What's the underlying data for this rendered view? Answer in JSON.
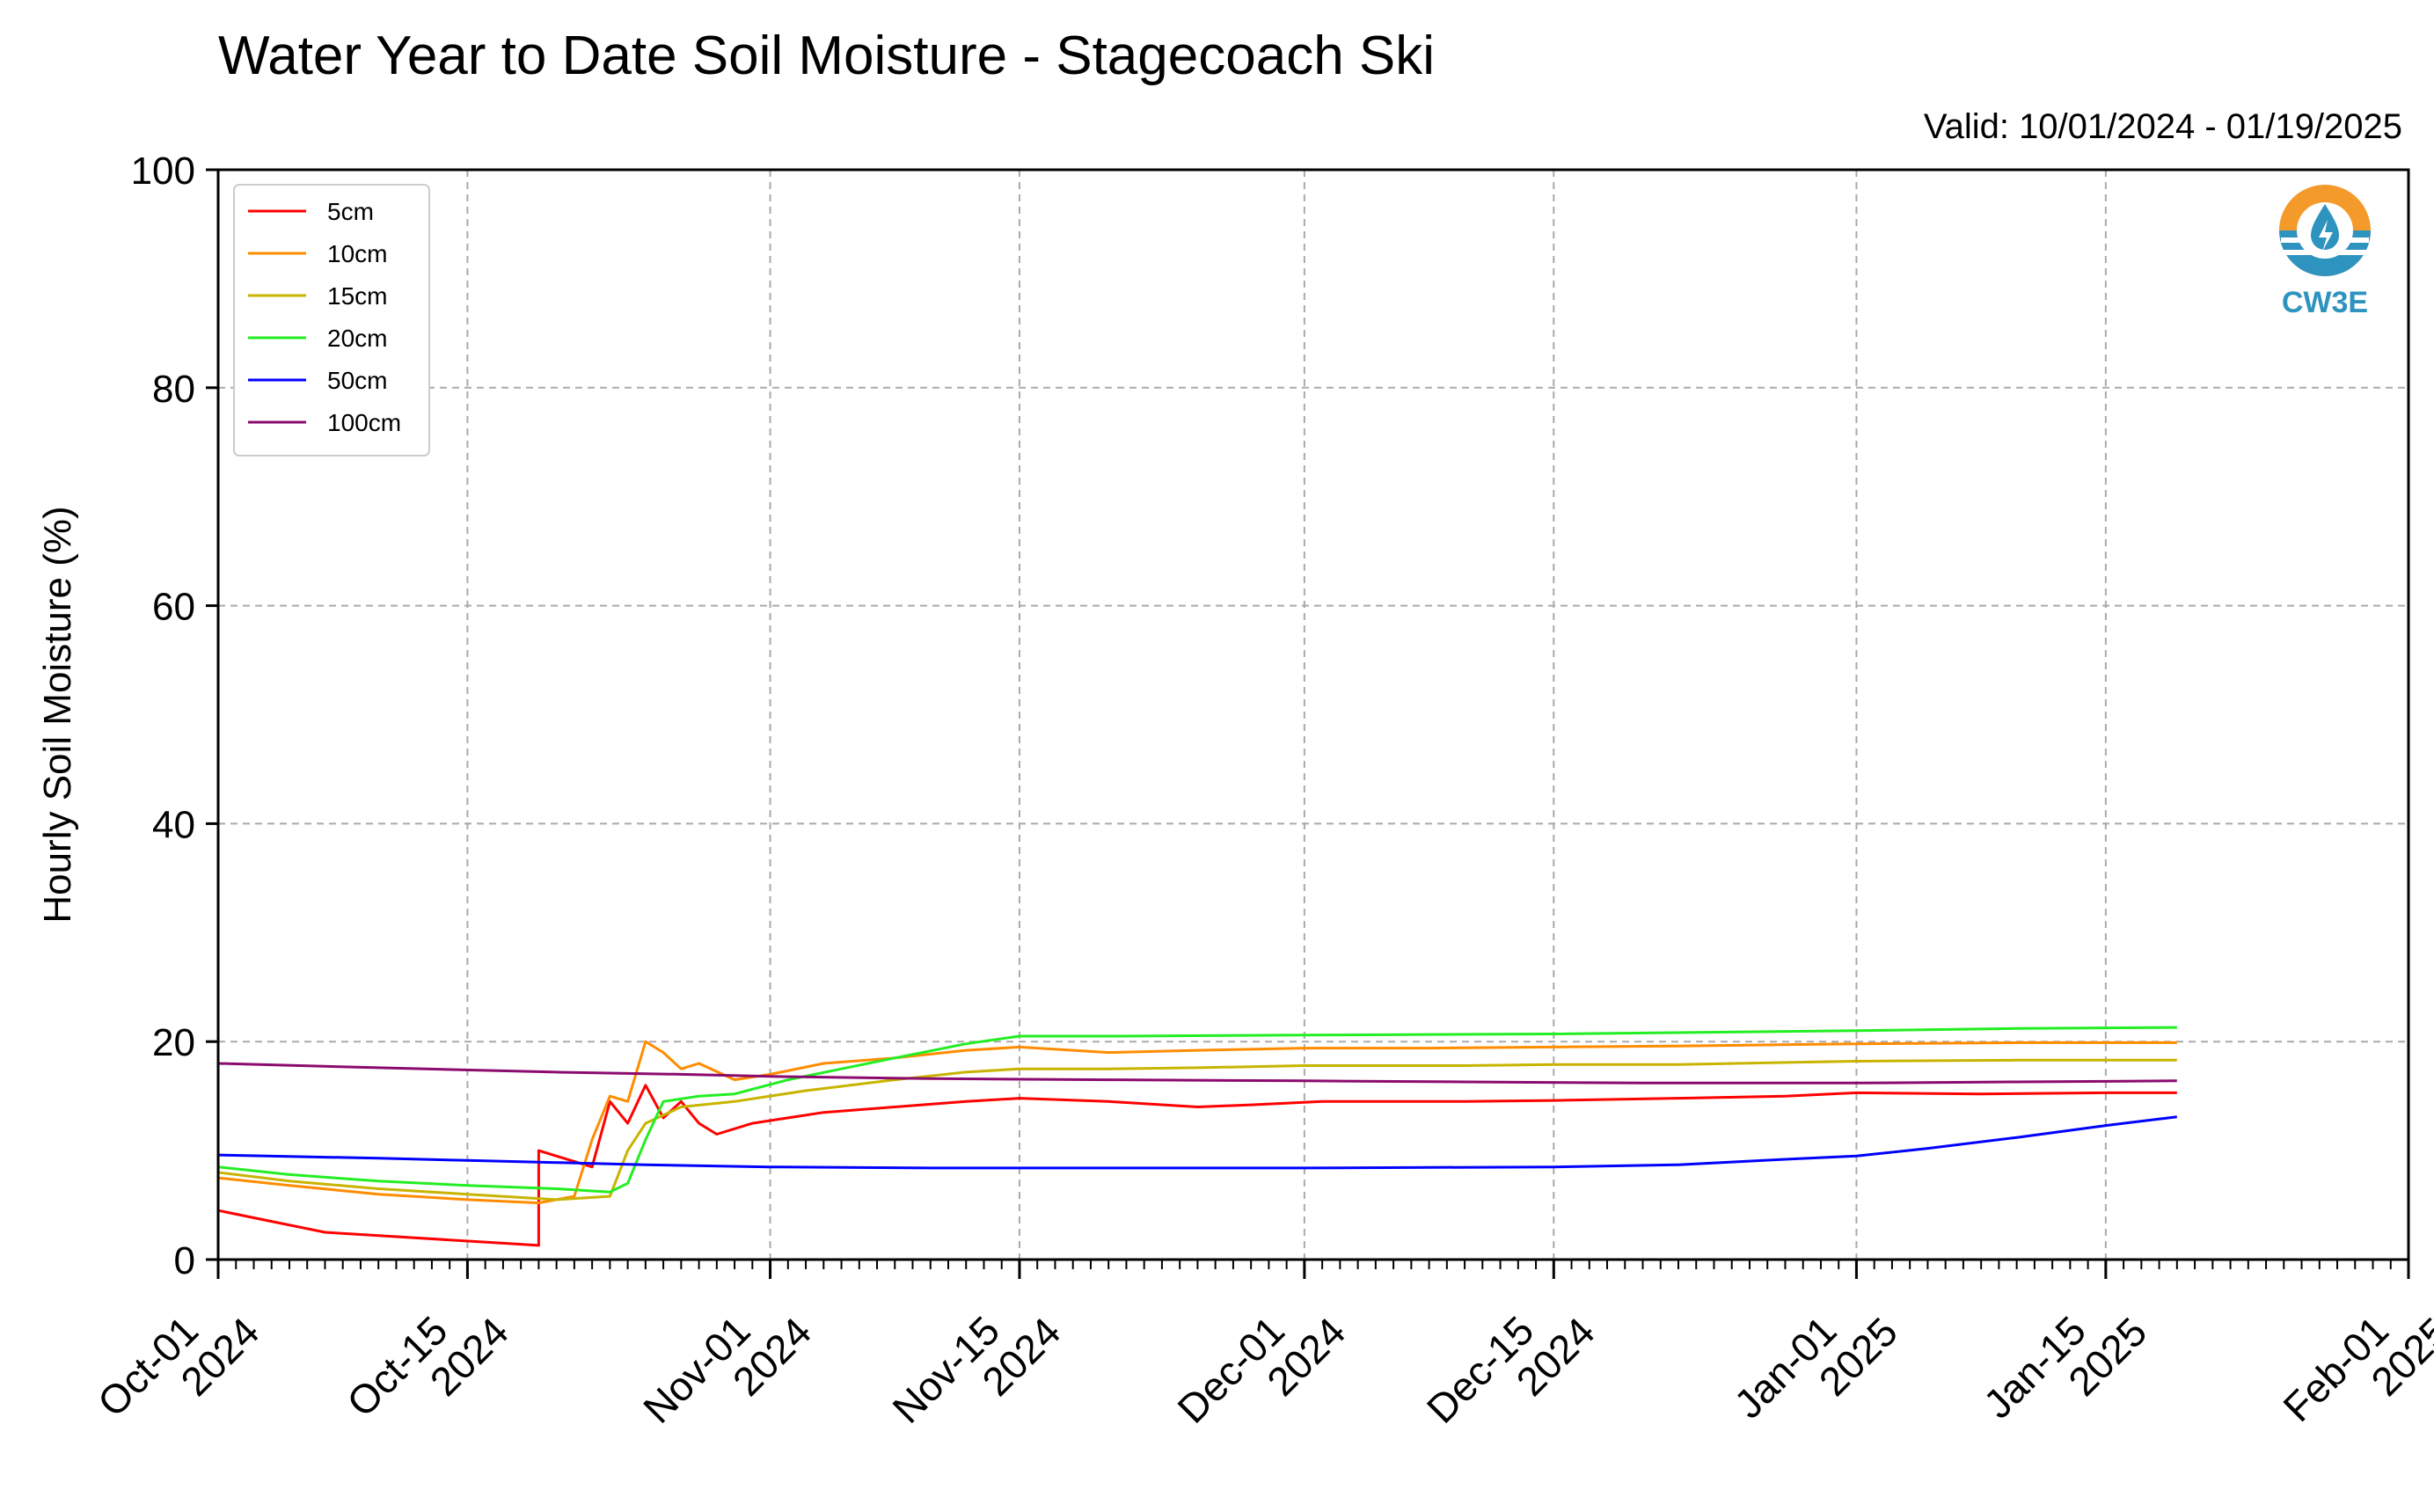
{
  "title": "Water Year to Date Soil Moisture - Stagecoach Ski",
  "valid_label": "Valid: 10/01/2024 - 01/19/2025",
  "logo": {
    "text": "CW3E",
    "icon": "cw3e-water-drop-logo",
    "color": "#2e93bf",
    "accent": "#f39a2a"
  },
  "chart_data": {
    "type": "line",
    "title": "Water Year to Date Soil Moisture - Stagecoach Ski",
    "xlabel": "",
    "ylabel": "Hourly Soil Moisture (%)",
    "xlim": [
      "2024-10-01",
      "2025-02-01"
    ],
    "ylim": [
      0,
      100
    ],
    "yticks": [
      0,
      20,
      40,
      60,
      80,
      100
    ],
    "xticks": [
      {
        "date": "2024-10-01",
        "label": [
          "Oct-01",
          "2024"
        ]
      },
      {
        "date": "2024-10-15",
        "label": [
          "Oct-15",
          "2024"
        ]
      },
      {
        "date": "2024-11-01",
        "label": [
          "Nov-01",
          "2024"
        ]
      },
      {
        "date": "2024-11-15",
        "label": [
          "Nov-15",
          "2024"
        ]
      },
      {
        "date": "2024-12-01",
        "label": [
          "Dec-01",
          "2024"
        ]
      },
      {
        "date": "2024-12-15",
        "label": [
          "Dec-15",
          "2024"
        ]
      },
      {
        "date": "2025-01-01",
        "label": [
          "Jan-01",
          "2025"
        ]
      },
      {
        "date": "2025-01-15",
        "label": [
          "Jan-15",
          "2025"
        ]
      },
      {
        "date": "2025-02-01",
        "label": [
          "Feb-01",
          "2025"
        ]
      }
    ],
    "grid": true,
    "legend_position": "top-left",
    "series": [
      {
        "name": "5cm",
        "color": "#ff0000",
        "points": [
          [
            "2024-10-01",
            4.5
          ],
          [
            "2024-10-04",
            3.5
          ],
          [
            "2024-10-07",
            2.5
          ],
          [
            "2024-10-10",
            2.2
          ],
          [
            "2024-10-14",
            1.8
          ],
          [
            "2024-10-17",
            1.5
          ],
          [
            "2024-10-19",
            1.3
          ],
          [
            "2024-10-19",
            10.0
          ],
          [
            "2024-10-20",
            9.5
          ],
          [
            "2024-10-22",
            8.5
          ],
          [
            "2024-10-23",
            14.5
          ],
          [
            "2024-10-24",
            12.5
          ],
          [
            "2024-10-25",
            16.0
          ],
          [
            "2024-10-26",
            13.0
          ],
          [
            "2024-10-27",
            14.5
          ],
          [
            "2024-10-28",
            12.5
          ],
          [
            "2024-10-29",
            11.5
          ],
          [
            "2024-10-31",
            12.5
          ],
          [
            "2024-11-04",
            13.5
          ],
          [
            "2024-11-08",
            14.0
          ],
          [
            "2024-11-12",
            14.5
          ],
          [
            "2024-11-15",
            14.8
          ],
          [
            "2024-11-20",
            14.5
          ],
          [
            "2024-11-25",
            14.0
          ],
          [
            "2024-11-28",
            14.2
          ],
          [
            "2024-12-02",
            14.5
          ],
          [
            "2024-12-10",
            14.5
          ],
          [
            "2024-12-15",
            14.6
          ],
          [
            "2024-12-22",
            14.8
          ],
          [
            "2024-12-28",
            15.0
          ],
          [
            "2025-01-01",
            15.3
          ],
          [
            "2025-01-08",
            15.2
          ],
          [
            "2025-01-15",
            15.3
          ],
          [
            "2025-01-19",
            15.3
          ]
        ]
      },
      {
        "name": "10cm",
        "color": "#ff8c00",
        "points": [
          [
            "2024-10-01",
            7.5
          ],
          [
            "2024-10-05",
            6.8
          ],
          [
            "2024-10-10",
            6.0
          ],
          [
            "2024-10-15",
            5.5
          ],
          [
            "2024-10-19",
            5.2
          ],
          [
            "2024-10-21",
            5.8
          ],
          [
            "2024-10-22",
            11.0
          ],
          [
            "2024-10-23",
            15.0
          ],
          [
            "2024-10-24",
            14.5
          ],
          [
            "2024-10-25",
            20.0
          ],
          [
            "2024-10-26",
            19.0
          ],
          [
            "2024-10-27",
            17.5
          ],
          [
            "2024-10-28",
            18.0
          ],
          [
            "2024-10-30",
            16.5
          ],
          [
            "2024-11-01",
            17.0
          ],
          [
            "2024-11-04",
            18.0
          ],
          [
            "2024-11-08",
            18.5
          ],
          [
            "2024-11-12",
            19.2
          ],
          [
            "2024-11-15",
            19.5
          ],
          [
            "2024-11-20",
            19.0
          ],
          [
            "2024-11-25",
            19.2
          ],
          [
            "2024-12-01",
            19.4
          ],
          [
            "2024-12-08",
            19.4
          ],
          [
            "2024-12-15",
            19.5
          ],
          [
            "2024-12-22",
            19.6
          ],
          [
            "2025-01-01",
            19.8
          ],
          [
            "2025-01-10",
            19.9
          ],
          [
            "2025-01-19",
            19.9
          ]
        ]
      },
      {
        "name": "15cm",
        "color": "#c8b400",
        "points": [
          [
            "2024-10-01",
            8.0
          ],
          [
            "2024-10-05",
            7.2
          ],
          [
            "2024-10-10",
            6.5
          ],
          [
            "2024-10-15",
            6.0
          ],
          [
            "2024-10-20",
            5.5
          ],
          [
            "2024-10-23",
            5.8
          ],
          [
            "2024-10-24",
            10.0
          ],
          [
            "2024-10-25",
            12.5
          ],
          [
            "2024-10-27",
            14.0
          ],
          [
            "2024-10-30",
            14.5
          ],
          [
            "2024-11-03",
            15.5
          ],
          [
            "2024-11-08",
            16.5
          ],
          [
            "2024-11-12",
            17.2
          ],
          [
            "2024-11-15",
            17.5
          ],
          [
            "2024-11-20",
            17.5
          ],
          [
            "2024-11-25",
            17.6
          ],
          [
            "2024-12-01",
            17.8
          ],
          [
            "2024-12-10",
            17.8
          ],
          [
            "2024-12-15",
            17.9
          ],
          [
            "2024-12-22",
            17.9
          ],
          [
            "2025-01-01",
            18.2
          ],
          [
            "2025-01-10",
            18.3
          ],
          [
            "2025-01-19",
            18.3
          ]
        ]
      },
      {
        "name": "20cm",
        "color": "#22ee22",
        "points": [
          [
            "2024-10-01",
            8.5
          ],
          [
            "2024-10-05",
            7.8
          ],
          [
            "2024-10-10",
            7.2
          ],
          [
            "2024-10-15",
            6.8
          ],
          [
            "2024-10-20",
            6.5
          ],
          [
            "2024-10-23",
            6.2
          ],
          [
            "2024-10-24",
            7.0
          ],
          [
            "2024-10-25",
            11.0
          ],
          [
            "2024-10-26",
            14.5
          ],
          [
            "2024-10-28",
            15.0
          ],
          [
            "2024-10-30",
            15.2
          ],
          [
            "2024-11-02",
            16.5
          ],
          [
            "2024-11-05",
            17.5
          ],
          [
            "2024-11-08",
            18.5
          ],
          [
            "2024-11-12",
            19.8
          ],
          [
            "2024-11-15",
            20.5
          ],
          [
            "2024-11-20",
            20.5
          ],
          [
            "2024-12-01",
            20.6
          ],
          [
            "2024-12-15",
            20.7
          ],
          [
            "2025-01-01",
            21.0
          ],
          [
            "2025-01-10",
            21.2
          ],
          [
            "2025-01-19",
            21.3
          ]
        ]
      },
      {
        "name": "50cm",
        "color": "#0000ff",
        "points": [
          [
            "2024-10-01",
            9.6
          ],
          [
            "2024-10-10",
            9.3
          ],
          [
            "2024-10-15",
            9.1
          ],
          [
            "2024-10-20",
            8.9
          ],
          [
            "2024-10-25",
            8.7
          ],
          [
            "2024-11-01",
            8.5
          ],
          [
            "2024-11-10",
            8.4
          ],
          [
            "2024-11-20",
            8.4
          ],
          [
            "2024-12-01",
            8.4
          ],
          [
            "2024-12-15",
            8.5
          ],
          [
            "2024-12-22",
            8.7
          ],
          [
            "2024-12-28",
            9.2
          ],
          [
            "2025-01-01",
            9.5
          ],
          [
            "2025-01-05",
            10.2
          ],
          [
            "2025-01-10",
            11.2
          ],
          [
            "2025-01-15",
            12.3
          ],
          [
            "2025-01-19",
            13.1
          ]
        ]
      },
      {
        "name": "100cm",
        "color": "#8b0a6e",
        "points": [
          [
            "2024-10-01",
            18.0
          ],
          [
            "2024-10-10",
            17.6
          ],
          [
            "2024-10-20",
            17.2
          ],
          [
            "2024-10-27",
            17.0
          ],
          [
            "2024-11-01",
            16.8
          ],
          [
            "2024-11-10",
            16.6
          ],
          [
            "2024-11-20",
            16.5
          ],
          [
            "2024-12-01",
            16.4
          ],
          [
            "2024-12-10",
            16.3
          ],
          [
            "2024-12-20",
            16.2
          ],
          [
            "2025-01-01",
            16.2
          ],
          [
            "2025-01-10",
            16.3
          ],
          [
            "2025-01-19",
            16.4
          ]
        ]
      }
    ]
  }
}
